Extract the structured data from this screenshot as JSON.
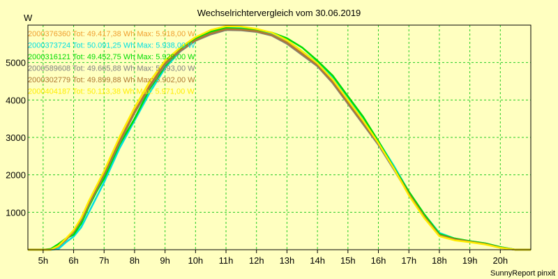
{
  "chart_data": {
    "type": "line",
    "title": "Wechselrichtervergleich vom 30.06.2019",
    "ylabel": "W",
    "xlabel": "",
    "footer": "SunnyReport pinxit",
    "xlim": [
      4.5,
      21
    ],
    "ylim": [
      0,
      6000
    ],
    "grid": true,
    "legend_placement": "top-left",
    "x_ticks": [
      {
        "value": 5,
        "label": "5h"
      },
      {
        "value": 6,
        "label": "6h"
      },
      {
        "value": 7,
        "label": "7h"
      },
      {
        "value": 8,
        "label": "8h"
      },
      {
        "value": 9,
        "label": "9h"
      },
      {
        "value": 10,
        "label": "10h"
      },
      {
        "value": 11,
        "label": "11h"
      },
      {
        "value": 12,
        "label": "12h"
      },
      {
        "value": 13,
        "label": "13h"
      },
      {
        "value": 14,
        "label": "14h"
      },
      {
        "value": 15,
        "label": "15h"
      },
      {
        "value": 16,
        "label": "16h"
      },
      {
        "value": 17,
        "label": "17h"
      },
      {
        "value": 18,
        "label": "18h"
      },
      {
        "value": 19,
        "label": "19h"
      },
      {
        "value": 20,
        "label": "20h"
      }
    ],
    "y_ticks": [
      {
        "value": 1000,
        "label": "1000"
      },
      {
        "value": 2000,
        "label": "2000"
      },
      {
        "value": 3000,
        "label": "3000"
      },
      {
        "value": 4000,
        "label": "4000"
      },
      {
        "value": 5000,
        "label": "5000"
      }
    ],
    "series": [
      {
        "name": "2000376360",
        "legend": "2000376360 Tot: 49.417,38 Wh Max: 5.918,00 W",
        "color": "#f0a030",
        "x": [
          4.5,
          5,
          5.25,
          5.5,
          5.75,
          6,
          6.25,
          6.5,
          6.75,
          7,
          7.5,
          8,
          8.5,
          9,
          9.5,
          10,
          10.5,
          11,
          11.5,
          12,
          12.5,
          13,
          13.5,
          14,
          14.5,
          15,
          15.5,
          16,
          16.5,
          17,
          17.5,
          18,
          18.5,
          19,
          19.5,
          20,
          20.5,
          21
        ],
        "y": [
          0,
          0,
          0,
          100,
          280,
          500,
          800,
          1200,
          1600,
          2000,
          2900,
          3700,
          4400,
          5000,
          5350,
          5600,
          5800,
          5900,
          5880,
          5850,
          5750,
          5550,
          5250,
          4950,
          4500,
          3950,
          3400,
          2850,
          2200,
          1500,
          900,
          400,
          280,
          220,
          160,
          60,
          0,
          0
        ]
      },
      {
        "name": "2000373724",
        "legend": "2000373724 Tot: 50.091,25 Wh Max: 5.938,00 W",
        "color": "#00e0e0",
        "x": [
          4.5,
          5,
          5.25,
          5.5,
          5.75,
          6,
          6.25,
          6.5,
          6.75,
          7,
          7.5,
          8,
          8.5,
          9,
          9.5,
          10,
          10.5,
          11,
          11.5,
          12,
          12.5,
          13,
          13.5,
          14,
          14.5,
          15,
          15.5,
          16,
          16.5,
          17,
          17.5,
          18,
          18.5,
          19,
          19.5,
          20,
          20.5,
          21
        ],
        "y": [
          0,
          0,
          0,
          20,
          200,
          350,
          600,
          1000,
          1400,
          1800,
          2700,
          3450,
          4200,
          4850,
          5300,
          5600,
          5800,
          5930,
          5920,
          5880,
          5780,
          5600,
          5300,
          5000,
          4600,
          4050,
          3500,
          2900,
          2250,
          1550,
          950,
          450,
          300,
          230,
          170,
          70,
          0,
          0
        ]
      },
      {
        "name": "2000316121",
        "legend": "2000316121 Tot: 49.452,75 Wh Max: 5.929,00 W",
        "color": "#00dd00",
        "x": [
          4.5,
          5,
          5.25,
          5.5,
          5.75,
          6,
          6.25,
          6.5,
          6.75,
          7,
          7.5,
          8,
          8.5,
          9,
          9.5,
          10,
          10.5,
          11,
          11.5,
          12,
          12.5,
          13,
          13.5,
          14,
          14.5,
          15,
          15.5,
          16,
          16.5,
          17,
          17.5,
          18,
          18.5,
          19,
          19.5,
          20,
          20.5,
          21
        ],
        "y": [
          0,
          0,
          20,
          150,
          300,
          400,
          700,
          1150,
          1550,
          1900,
          2800,
          3500,
          4300,
          4900,
          5350,
          5650,
          5830,
          5920,
          5900,
          5880,
          5800,
          5650,
          5400,
          5050,
          4650,
          4100,
          3550,
          2900,
          2200,
          1550,
          950,
          420,
          300,
          230,
          170,
          70,
          0,
          0
        ]
      },
      {
        "name": "2000589608",
        "legend": "2000589608 Tot: 49.665,88 Wh Max: 5.893,00 W",
        "color": "#808080",
        "x": [
          4.5,
          5,
          5.25,
          5.5,
          5.75,
          6,
          6.25,
          6.5,
          6.75,
          7,
          7.5,
          8,
          8.5,
          9,
          9.5,
          10,
          10.5,
          11,
          11.5,
          12,
          12.5,
          13,
          13.5,
          14,
          14.5,
          15,
          15.5,
          16,
          16.5,
          17,
          17.5,
          18,
          18.5,
          19,
          19.5,
          20,
          20.5,
          21
        ],
        "y": [
          0,
          0,
          0,
          80,
          260,
          480,
          780,
          1200,
          1600,
          2000,
          2850,
          3650,
          4350,
          4950,
          5300,
          5580,
          5750,
          5870,
          5860,
          5820,
          5720,
          5500,
          5200,
          4900,
          4450,
          3900,
          3350,
          2800,
          2150,
          1480,
          880,
          380,
          270,
          210,
          150,
          50,
          0,
          0
        ]
      },
      {
        "name": "2000302779",
        "legend": "2000302779 Tot: 49.899,88 Wh Max: 5.902,00 W",
        "color": "#b07830",
        "x": [
          4.5,
          5,
          5.25,
          5.5,
          5.75,
          6,
          6.25,
          6.5,
          6.75,
          7,
          7.5,
          8,
          8.5,
          9,
          9.5,
          10,
          10.5,
          11,
          11.5,
          12,
          12.5,
          13,
          13.5,
          14,
          14.5,
          15,
          15.5,
          16,
          16.5,
          17,
          17.5,
          18,
          18.5,
          19,
          19.5,
          20,
          20.5,
          21
        ],
        "y": [
          0,
          0,
          0,
          90,
          270,
          490,
          800,
          1220,
          1620,
          2020,
          2880,
          3680,
          4380,
          4980,
          5330,
          5600,
          5780,
          5890,
          5880,
          5840,
          5740,
          5530,
          5230,
          4930,
          4480,
          3930,
          3380,
          2830,
          2180,
          1490,
          890,
          390,
          280,
          215,
          155,
          55,
          0,
          0
        ]
      },
      {
        "name": "2000404187",
        "legend": "2000404187 Tot: 50.113,38 Wh Max: 5.971,00 W",
        "color": "#ffee00",
        "x": [
          4.5,
          5,
          5.25,
          5.5,
          5.75,
          6,
          6.25,
          6.5,
          6.75,
          7,
          7.5,
          8,
          8.5,
          9,
          9.5,
          10,
          10.5,
          11,
          11.5,
          12,
          12.5,
          13,
          13.5,
          14,
          14.5,
          15,
          15.5,
          16,
          16.5,
          17,
          17.5,
          18,
          18.5,
          19,
          19.5,
          20,
          20.5,
          21
        ],
        "y": [
          0,
          0,
          0,
          100,
          300,
          520,
          850,
          1300,
          1700,
          2100,
          3000,
          3800,
          4500,
          5050,
          5400,
          5680,
          5870,
          5970,
          5960,
          5900,
          5800,
          5600,
          5300,
          4980,
          4550,
          4000,
          3450,
          2850,
          2180,
          1450,
          850,
          360,
          250,
          200,
          140,
          50,
          0,
          0
        ]
      }
    ]
  }
}
